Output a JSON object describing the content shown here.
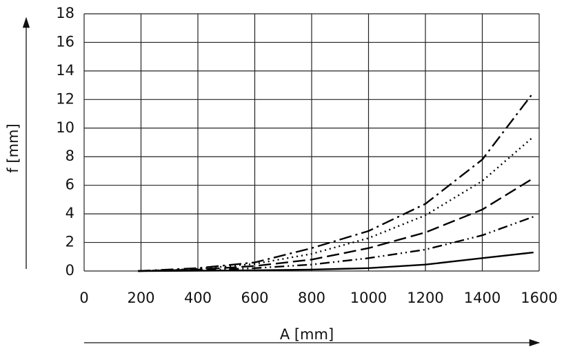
{
  "chart_data": {
    "type": "line",
    "x_label": "A [mm]",
    "y_label": "f [mm]",
    "x": [
      190,
      400,
      600,
      800,
      1000,
      1200,
      1400,
      1580
    ],
    "series": [
      {
        "color": "#000000",
        "dash": "solid",
        "values": [
          0,
          0.02,
          0.05,
          0.1,
          0.2,
          0.45,
          0.9,
          1.3
        ]
      },
      {
        "color": "#000000",
        "dash": "dash-dot-dot",
        "values": [
          0,
          0.05,
          0.2,
          0.45,
          0.9,
          1.5,
          2.5,
          3.8
        ]
      },
      {
        "color": "#000000",
        "dash": "long-dash",
        "values": [
          0,
          0.1,
          0.35,
          0.8,
          1.6,
          2.7,
          4.3,
          6.5
        ]
      },
      {
        "color": "#000000",
        "dash": "dotted",
        "values": [
          0,
          0.15,
          0.5,
          1.2,
          2.3,
          3.9,
          6.3,
          9.4
        ]
      },
      {
        "color": "#000000",
        "dash": "dash-dot",
        "values": [
          0,
          0.2,
          0.6,
          1.6,
          2.8,
          4.7,
          7.8,
          12.5
        ]
      }
    ],
    "xlim": [
      0,
      1600
    ],
    "xticks": [
      0,
      200,
      400,
      600,
      800,
      1000,
      1200,
      1400,
      1600
    ],
    "ylim": [
      0,
      18
    ],
    "yticks": [
      0,
      2,
      4,
      6,
      8,
      10,
      12,
      14,
      16,
      18
    ],
    "grid": true
  }
}
